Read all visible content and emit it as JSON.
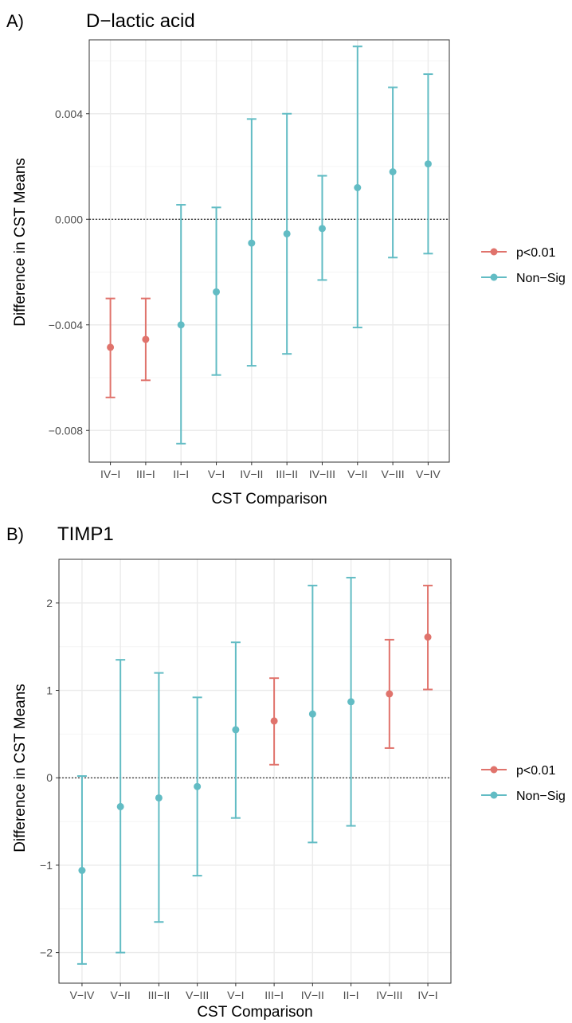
{
  "chart_data": [
    {
      "panel_label": "A)",
      "type": "scatter",
      "title": "D−lactic acid",
      "xlabel": "CST Comparison",
      "ylabel": "Difference in CST Means",
      "categories": [
        "IV−I",
        "III−I",
        "II−I",
        "V−I",
        "IV−II",
        "III−II",
        "IV−III",
        "V−II",
        "V−III",
        "V−IV"
      ],
      "estimate": [
        -0.00485,
        -0.00455,
        -0.004,
        -0.00275,
        -0.0009,
        -0.00055,
        -0.00035,
        0.0012,
        0.0018,
        0.0021
      ],
      "lower": [
        -0.00675,
        -0.0061,
        -0.0085,
        -0.0059,
        -0.00555,
        -0.0051,
        -0.0023,
        -0.0041,
        -0.00145,
        -0.0013
      ],
      "upper": [
        -0.003,
        -0.003,
        0.00055,
        0.00045,
        0.0038,
        0.004,
        0.00165,
        0.00655,
        0.005,
        0.0055
      ],
      "group": [
        "p<0.01",
        "p<0.01",
        "Non−Sig",
        "Non−Sig",
        "Non−Sig",
        "Non−Sig",
        "Non−Sig",
        "Non−Sig",
        "Non−Sig",
        "Non−Sig"
      ],
      "ylim": [
        -0.0092,
        0.0068
      ],
      "yticks": [
        -0.008,
        -0.004,
        0.0,
        0.004
      ],
      "ytick_labels": [
        "−0.008",
        "−0.004",
        "0.000",
        "0.004"
      ],
      "reference_line": 0,
      "grid": true,
      "legend": {
        "position": "right",
        "entries": [
          "p<0.01",
          "Non−Sig"
        ]
      }
    },
    {
      "panel_label": "B)",
      "type": "scatter",
      "title": "TIMP1",
      "xlabel": "CST Comparison",
      "ylabel": "Difference in CST Means",
      "categories": [
        "V−IV",
        "V−II",
        "III−II",
        "V−III",
        "V−I",
        "III−I",
        "IV−II",
        "II−I",
        "IV−III",
        "IV−I"
      ],
      "estimate": [
        -1.06,
        -0.33,
        -0.23,
        -0.1,
        0.55,
        0.65,
        0.73,
        0.87,
        0.96,
        1.61
      ],
      "lower": [
        -2.13,
        -2.0,
        -1.65,
        -1.12,
        -0.46,
        0.15,
        -0.74,
        -0.55,
        0.34,
        1.01
      ],
      "upper": [
        0.02,
        1.35,
        1.2,
        0.92,
        1.55,
        1.14,
        2.2,
        2.29,
        1.58,
        2.2
      ],
      "group": [
        "Non−Sig",
        "Non−Sig",
        "Non−Sig",
        "Non−Sig",
        "Non−Sig",
        "p<0.01",
        "Non−Sig",
        "Non−Sig",
        "p<0.01",
        "p<0.01"
      ],
      "ylim": [
        -2.35,
        2.5
      ],
      "yticks": [
        -2,
        -1,
        0,
        1,
        2
      ],
      "ytick_labels": [
        "−2",
        "−1",
        "0",
        "1",
        "2"
      ],
      "reference_line": 0,
      "grid": true,
      "legend": {
        "position": "right",
        "entries": [
          "p<0.01",
          "Non−Sig"
        ]
      }
    }
  ],
  "colors": {
    "p<0.01": "#e0736c",
    "Non−Sig": "#62bcc4",
    "grid_major": "#ebebeb",
    "grid_minor": "#f4f4f4",
    "panel_border": "#333333",
    "tick_text": "#4d4d4d"
  }
}
